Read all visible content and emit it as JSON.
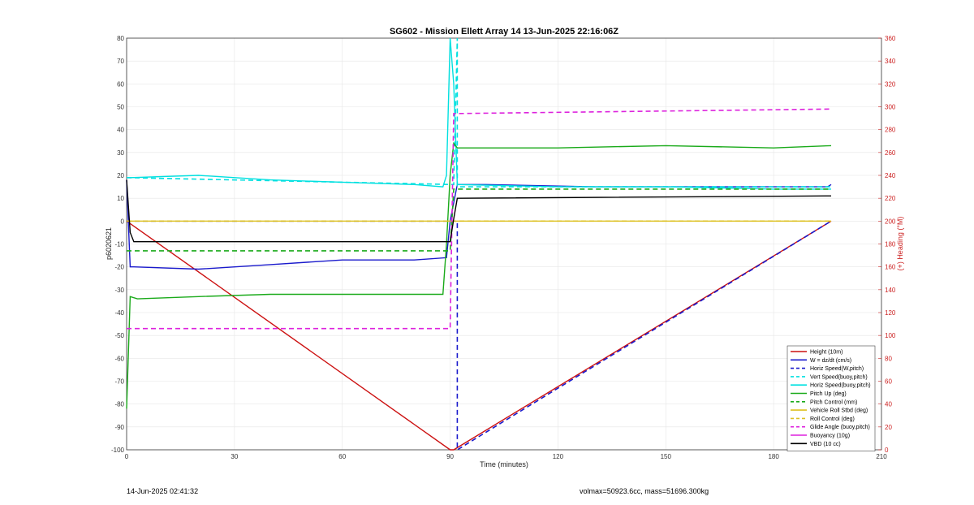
{
  "footer": {
    "left": "14-Jun-2025 02:41:32",
    "right": "volmax=50923.6cc, mass=51696.300kg"
  },
  "chart_data": {
    "type": "line",
    "title": "SG602 - Mission Ellett Array 14 13-Jun-2025 22:16:06Z",
    "xlabel": "Time (minutes)",
    "ylabel": "p6020621",
    "y2label": "(+) Heading (°M)",
    "xlim": [
      0,
      210
    ],
    "ylim": [
      -100,
      80
    ],
    "y2lim": [
      0,
      360
    ],
    "xticks": [
      0,
      30,
      60,
      90,
      120,
      150,
      180,
      210
    ],
    "yticks": [
      -100,
      -90,
      -80,
      -70,
      -60,
      -50,
      -40,
      -30,
      -20,
      -10,
      0,
      10,
      20,
      30,
      40,
      50,
      60,
      70,
      80
    ],
    "y2ticks": [
      0,
      20,
      40,
      60,
      80,
      100,
      120,
      140,
      160,
      180,
      200,
      220,
      240,
      260,
      280,
      300,
      320,
      340,
      360
    ],
    "grid": true,
    "legend_position": "bottom-right",
    "series": [
      {
        "name": "Height (10m)",
        "color": "#cc1111",
        "style": "solid",
        "axis": "left",
        "x": [
          0,
          90,
          91,
          196
        ],
        "y": [
          0,
          -100,
          -100,
          0
        ]
      },
      {
        "name": "W = dz/dt (cm/s)",
        "color": "#1a1acc",
        "style": "solid",
        "axis": "left",
        "x": [
          0,
          1,
          2,
          20,
          40,
          60,
          80,
          89,
          90,
          92,
          100,
          130,
          160,
          195,
          196
        ],
        "y": [
          18,
          -20,
          -20,
          -21,
          -19,
          -17,
          -17,
          -16,
          0,
          16,
          16,
          15,
          15,
          15,
          16
        ]
      },
      {
        "name": "Horiz Speed(W,pitch)",
        "color": "#1a1acc",
        "style": "dashed",
        "axis": "left",
        "x": [
          0,
          91,
          92,
          92,
          196
        ],
        "y": [
          0,
          0,
          0,
          -100,
          0
        ]
      },
      {
        "name": "Vert Speed(buoy,pitch)",
        "color": "#00e0e0",
        "style": "dashed",
        "axis": "left",
        "x": [
          0,
          91,
          92,
          92,
          196
        ],
        "y": [
          19,
          16,
          80,
          15,
          15
        ]
      },
      {
        "name": "Horiz Speed(buoy,pitch)",
        "color": "#00e0e0",
        "style": "solid",
        "axis": "left",
        "x": [
          0,
          1,
          20,
          40,
          60,
          80,
          88,
          89,
          90,
          91,
          92,
          120,
          150,
          180,
          196
        ],
        "y": [
          19,
          19,
          20,
          18,
          17,
          16,
          15,
          20,
          80,
          60,
          16,
          15,
          15,
          14,
          14
        ]
      },
      {
        "name": "Pitch Up (deg)",
        "color": "#1aaa1a",
        "style": "solid",
        "axis": "left",
        "x": [
          0,
          1,
          3,
          20,
          40,
          60,
          80,
          88,
          89,
          90,
          91,
          92,
          120,
          150,
          180,
          196
        ],
        "y": [
          -82,
          -33,
          -34,
          -33,
          -32,
          -32,
          -32,
          -32,
          -10,
          20,
          34,
          32,
          32,
          33,
          32,
          33
        ]
      },
      {
        "name": "Pitch Control (mm)",
        "color": "#1aaa1a",
        "style": "dashed",
        "axis": "left",
        "x": [
          0,
          90,
          91,
          196
        ],
        "y": [
          -13,
          -13,
          14,
          14
        ]
      },
      {
        "name": "Vehicle Roll Stbd (deg)",
        "color": "#ddc022",
        "style": "solid",
        "axis": "left",
        "x": [
          0,
          196
        ],
        "y": [
          0,
          0
        ]
      },
      {
        "name": "Roll Control (deg)",
        "color": "#ddc022",
        "style": "dashed",
        "axis": "left",
        "x": [
          0,
          196
        ],
        "y": [
          0,
          0
        ]
      },
      {
        "name": "Glide Angle (buoy,pitch)",
        "color": "#dd22dd",
        "style": "dashed",
        "axis": "left",
        "x": [
          0,
          90,
          91,
          196
        ],
        "y": [
          -47,
          -47,
          47,
          49
        ]
      },
      {
        "name": "Buoyancy (10g)",
        "color": "#dd22dd",
        "style": "solid",
        "axis": "left",
        "x": [],
        "y": []
      },
      {
        "name": "VBD (10 cc)",
        "color": "#000000",
        "style": "solid",
        "axis": "left",
        "x": [
          0,
          1,
          2,
          90,
          91,
          92,
          196
        ],
        "y": [
          18,
          -5,
          -9,
          -9,
          1,
          10,
          11
        ]
      }
    ]
  }
}
